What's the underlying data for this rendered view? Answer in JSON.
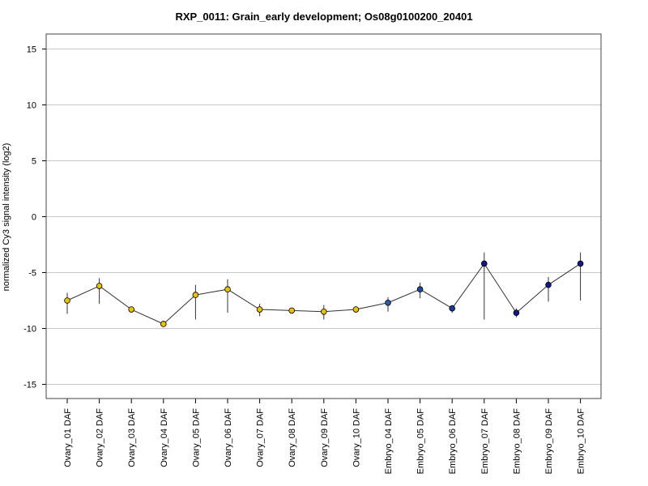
{
  "chart_data": {
    "type": "line",
    "title": "RXP_0011: Grain_early development; Os08g0100200_20401",
    "xlabel": "",
    "ylabel": "normalized Cy3 signal intensity (log2)",
    "ylim": [
      -16,
      16
    ],
    "yticks": [
      -15,
      -10,
      -5,
      0,
      5,
      10,
      15
    ],
    "grid": true,
    "categories": [
      "Ovary_01 DAF",
      "Ovary_02 DAF",
      "Ovary_03 DAF",
      "Ovary_04 DAF",
      "Ovary_05 DAF",
      "Ovary_06 DAF",
      "Ovary_07 DAF",
      "Ovary_08 DAF",
      "Ovary_09 DAF",
      "Ovary_10 DAF",
      "Embryo_04 DAF",
      "Embryo_05 DAF",
      "Embryo_06 DAF",
      "Embryo_07 DAF",
      "Embryo_08 DAF",
      "Embryo_09 DAF",
      "Embryo_10 DAF"
    ],
    "values": [
      -7.5,
      -6.2,
      -8.3,
      -9.6,
      -7.0,
      -6.5,
      -8.3,
      -8.4,
      -8.5,
      -8.3,
      -7.7,
      -6.5,
      -8.2,
      -4.2,
      -8.6,
      -6.1,
      -4.2
    ],
    "error_low": [
      -8.7,
      -7.8,
      -8.5,
      -9.7,
      -9.2,
      -8.6,
      -8.9,
      -8.5,
      -9.2,
      -8.4,
      -8.5,
      -7.3,
      -8.6,
      -9.2,
      -9.0,
      -7.6,
      -7.5
    ],
    "error_high": [
      -6.8,
      -5.5,
      -8.1,
      -9.4,
      -6.1,
      -5.6,
      -7.8,
      -8.2,
      -7.9,
      -8.1,
      -7.2,
      -5.9,
      -7.9,
      -3.2,
      -8.2,
      -5.4,
      -3.2
    ],
    "colors": {
      "ovary": "#e8c20a",
      "embryo_04": "#2e5ca8",
      "embryo_05": "#1e4aa0",
      "embryo": "#101a8a",
      "line": "#333333",
      "grid": "#c8c8c8",
      "frame": "#444444"
    },
    "point_colors": [
      "#e8c20a",
      "#e8c20a",
      "#e8c20a",
      "#e8c20a",
      "#e8c20a",
      "#e8c20a",
      "#e8c20a",
      "#e8c20a",
      "#e8c20a",
      "#e8c20a",
      "#2e5ca8",
      "#1e4aa0",
      "#1a3a98",
      "#101a8a",
      "#101a8a",
      "#101a8a",
      "#101a8a"
    ]
  }
}
